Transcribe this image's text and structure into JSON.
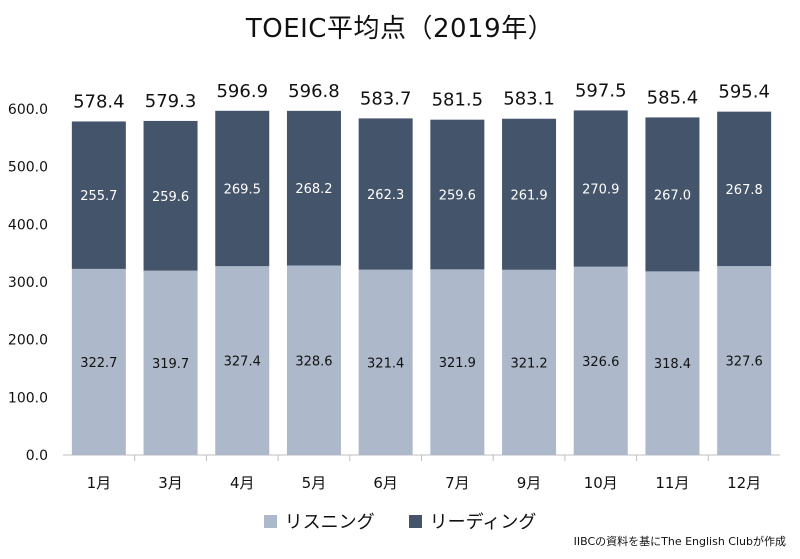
{
  "title": "TOEIC平均点（2019年）",
  "source": "IIBCの資料を基にThe English Clubが作成",
  "legend": {
    "listening": "リスニング",
    "reading": "リーディング"
  },
  "colors": {
    "listening": "#adb9ca",
    "reading": "#44546a",
    "axis": "#bfbfbf",
    "listening_label": "#111111",
    "reading_label": "#ffffff"
  },
  "chart_data": {
    "type": "bar",
    "stacked": true,
    "title": "TOEIC平均点（2019年）",
    "xlabel": "",
    "ylabel": "",
    "ylim": [
      0,
      600
    ],
    "yticks": [
      "0.0",
      "100.0",
      "200.0",
      "300.0",
      "400.0",
      "500.0",
      "600.0"
    ],
    "grid": false,
    "legend_position": "bottom",
    "categories": [
      "1月",
      "3月",
      "4月",
      "5月",
      "6月",
      "7月",
      "9月",
      "10月",
      "11月",
      "12月"
    ],
    "series": [
      {
        "name": "リスニング",
        "values": [
          322.7,
          319.7,
          327.4,
          328.6,
          321.4,
          321.9,
          321.2,
          326.6,
          318.4,
          327.6
        ]
      },
      {
        "name": "リーディング",
        "values": [
          255.7,
          259.6,
          269.5,
          268.2,
          262.3,
          259.6,
          261.9,
          270.9,
          267.0,
          267.8
        ]
      }
    ],
    "totals": [
      578.4,
      579.3,
      596.9,
      596.8,
      583.7,
      581.5,
      583.1,
      597.5,
      585.4,
      595.4
    ]
  }
}
